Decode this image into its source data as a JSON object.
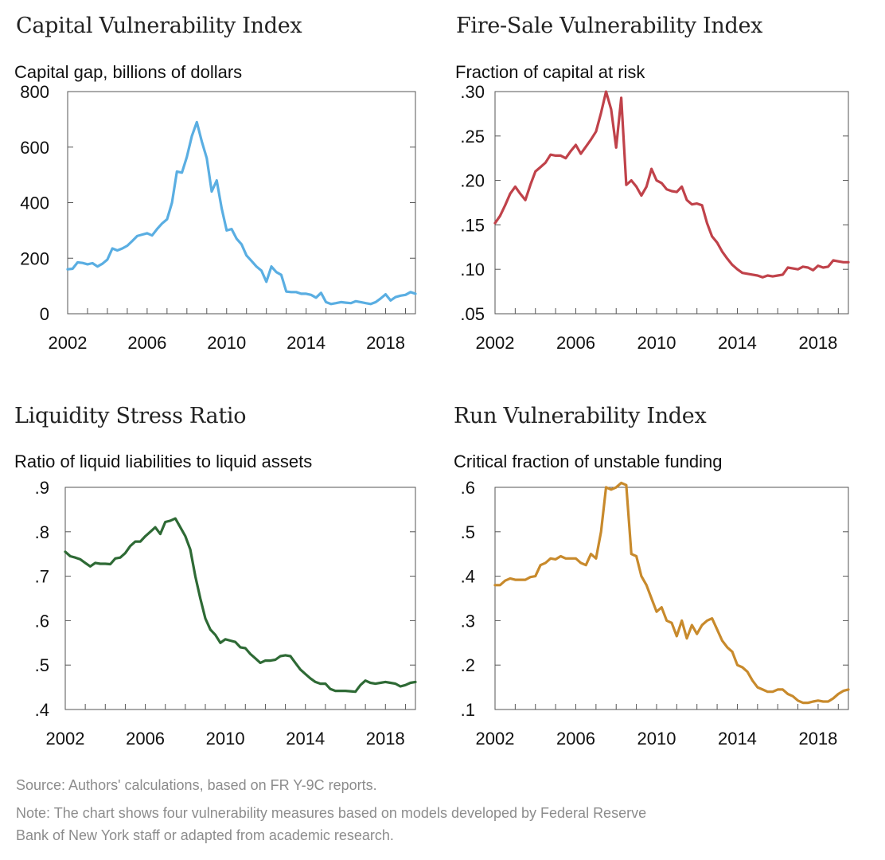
{
  "chart_data": [
    {
      "type": "line",
      "title": "Capital Vulnerability Index",
      "ylabel": "Capital gap, billions of dollars",
      "xlabel": "",
      "ylim": [
        0,
        800
      ],
      "xlim": [
        2002,
        2019.5
      ],
      "y_ticks": [
        "0",
        "200",
        "400",
        "600",
        "800"
      ],
      "y_tick_values": [
        0,
        200,
        400,
        600,
        800
      ],
      "x_ticks": [
        "2002",
        "2006",
        "2010",
        "2014",
        "2018"
      ],
      "color": "#5aaee2",
      "series": [
        {
          "x": [
            2002.0,
            2002.25,
            2002.5,
            2002.75,
            2003.0,
            2003.25,
            2003.5,
            2003.75,
            2004.0,
            2004.25,
            2004.5,
            2004.75,
            2005.0,
            2005.25,
            2005.5,
            2005.75,
            2006.0,
            2006.25,
            2006.5,
            2006.75,
            2007.0,
            2007.25,
            2007.5,
            2007.75,
            2008.0,
            2008.25,
            2008.5,
            2008.75,
            2009.0,
            2009.25,
            2009.5,
            2009.75,
            2010.0,
            2010.25,
            2010.5,
            2010.75,
            2011.0,
            2011.25,
            2011.5,
            2011.75,
            2012.0,
            2012.25,
            2012.5,
            2012.75,
            2013.0,
            2013.25,
            2013.5,
            2013.75,
            2014.0,
            2014.25,
            2014.5,
            2014.75,
            2015.0,
            2015.25,
            2015.5,
            2015.75,
            2016.0,
            2016.25,
            2016.5,
            2016.75,
            2017.0,
            2017.25,
            2017.5,
            2017.75,
            2018.0,
            2018.25,
            2018.5,
            2018.75,
            2019.0,
            2019.25,
            2019.5
          ],
          "y": [
            160,
            162,
            185,
            183,
            178,
            182,
            170,
            180,
            195,
            235,
            228,
            235,
            245,
            262,
            280,
            285,
            290,
            282,
            305,
            325,
            340,
            400,
            512,
            508,
            565,
            640,
            690,
            620,
            560,
            440,
            480,
            380,
            300,
            305,
            270,
            250,
            210,
            190,
            170,
            155,
            115,
            170,
            150,
            140,
            80,
            78,
            78,
            72,
            72,
            68,
            58,
            75,
            42,
            35,
            38,
            42,
            40,
            38,
            45,
            42,
            38,
            35,
            42,
            55,
            70,
            48,
            60,
            65,
            68,
            78,
            72
          ]
        }
      ]
    },
    {
      "type": "line",
      "title": "Fire-Sale Vulnerability Index",
      "ylabel": "Fraction of capital at risk",
      "xlabel": "",
      "ylim": [
        0.05,
        0.3
      ],
      "xlim": [
        2002,
        2019.5
      ],
      "y_ticks": [
        ".05",
        ".10",
        ".15",
        ".20",
        ".25",
        ".30"
      ],
      "y_tick_values": [
        0.05,
        0.1,
        0.15,
        0.2,
        0.25,
        0.3
      ],
      "x_ticks": [
        "2002",
        "2006",
        "2010",
        "2014",
        "2018"
      ],
      "color": "#c0424a",
      "series": [
        {
          "x": [
            2002.0,
            2002.25,
            2002.5,
            2002.75,
            2003.0,
            2003.25,
            2003.5,
            2003.75,
            2004.0,
            2004.25,
            2004.5,
            2004.75,
            2005.0,
            2005.25,
            2005.5,
            2005.75,
            2006.0,
            2006.25,
            2006.5,
            2006.75,
            2007.0,
            2007.25,
            2007.5,
            2007.75,
            2008.0,
            2008.25,
            2008.5,
            2008.75,
            2009.0,
            2009.25,
            2009.5,
            2009.75,
            2010.0,
            2010.25,
            2010.5,
            2010.75,
            2011.0,
            2011.25,
            2011.5,
            2011.75,
            2012.0,
            2012.25,
            2012.5,
            2012.75,
            2013.0,
            2013.25,
            2013.5,
            2013.75,
            2014.0,
            2014.25,
            2014.5,
            2014.75,
            2015.0,
            2015.25,
            2015.5,
            2015.75,
            2016.0,
            2016.25,
            2016.5,
            2016.75,
            2017.0,
            2017.25,
            2017.5,
            2017.75,
            2018.0,
            2018.25,
            2018.5,
            2018.75,
            2019.0,
            2019.25,
            2019.5
          ],
          "y": [
            0.152,
            0.16,
            0.172,
            0.185,
            0.193,
            0.185,
            0.178,
            0.195,
            0.21,
            0.215,
            0.22,
            0.229,
            0.228,
            0.228,
            0.225,
            0.233,
            0.24,
            0.23,
            0.238,
            0.246,
            0.255,
            0.276,
            0.3,
            0.28,
            0.237,
            0.293,
            0.195,
            0.2,
            0.193,
            0.183,
            0.193,
            0.213,
            0.2,
            0.197,
            0.19,
            0.188,
            0.187,
            0.193,
            0.178,
            0.173,
            0.174,
            0.172,
            0.152,
            0.137,
            0.13,
            0.12,
            0.112,
            0.105,
            0.1,
            0.096,
            0.095,
            0.094,
            0.093,
            0.091,
            0.093,
            0.092,
            0.093,
            0.094,
            0.102,
            0.101,
            0.1,
            0.103,
            0.102,
            0.099,
            0.104,
            0.102,
            0.103,
            0.11,
            0.109,
            0.108,
            0.108
          ]
        }
      ]
    },
    {
      "type": "line",
      "title": "Liquidity Stress Ratio",
      "ylabel": "Ratio of liquid liabilities to liquid assets",
      "xlabel": "",
      "ylim": [
        0.4,
        0.9
      ],
      "xlim": [
        2002,
        2019.5
      ],
      "y_ticks": [
        ".4",
        ".5",
        ".6",
        ".7",
        ".8",
        ".9"
      ],
      "y_tick_values": [
        0.4,
        0.5,
        0.6,
        0.7,
        0.8,
        0.9
      ],
      "x_ticks": [
        "2002",
        "2006",
        "2010",
        "2014",
        "2018"
      ],
      "color": "#2e6a35",
      "series": [
        {
          "x": [
            2002.0,
            2002.25,
            2002.5,
            2002.75,
            2003.0,
            2003.25,
            2003.5,
            2003.75,
            2004.0,
            2004.25,
            2004.5,
            2004.75,
            2005.0,
            2005.25,
            2005.5,
            2005.75,
            2006.0,
            2006.25,
            2006.5,
            2006.75,
            2007.0,
            2007.25,
            2007.5,
            2007.75,
            2008.0,
            2008.25,
            2008.5,
            2008.75,
            2009.0,
            2009.25,
            2009.5,
            2009.75,
            2010.0,
            2010.25,
            2010.5,
            2010.75,
            2011.0,
            2011.25,
            2011.5,
            2011.75,
            2012.0,
            2012.25,
            2012.5,
            2012.75,
            2013.0,
            2013.25,
            2013.5,
            2013.75,
            2014.0,
            2014.25,
            2014.5,
            2014.75,
            2015.0,
            2015.25,
            2015.5,
            2015.75,
            2016.0,
            2016.25,
            2016.5,
            2016.75,
            2017.0,
            2017.25,
            2017.5,
            2017.75,
            2018.0,
            2018.25,
            2018.5,
            2018.75,
            2019.0,
            2019.25,
            2019.5
          ],
          "y": [
            0.755,
            0.745,
            0.742,
            0.738,
            0.73,
            0.722,
            0.73,
            0.728,
            0.728,
            0.727,
            0.74,
            0.742,
            0.752,
            0.768,
            0.778,
            0.778,
            0.79,
            0.8,
            0.81,
            0.795,
            0.822,
            0.825,
            0.83,
            0.81,
            0.79,
            0.76,
            0.7,
            0.65,
            0.605,
            0.58,
            0.568,
            0.55,
            0.558,
            0.555,
            0.552,
            0.54,
            0.538,
            0.525,
            0.515,
            0.505,
            0.51,
            0.51,
            0.512,
            0.52,
            0.522,
            0.52,
            0.505,
            0.49,
            0.48,
            0.47,
            0.462,
            0.458,
            0.458,
            0.446,
            0.442,
            0.442,
            0.442,
            0.441,
            0.44,
            0.455,
            0.465,
            0.46,
            0.458,
            0.46,
            0.462,
            0.46,
            0.458,
            0.452,
            0.455,
            0.46,
            0.462
          ]
        }
      ]
    },
    {
      "type": "line",
      "title": "Run Vulnerability Index",
      "ylabel": "Critical fraction of unstable funding",
      "xlabel": "",
      "ylim": [
        0.1,
        0.6
      ],
      "xlim": [
        2002,
        2019.5
      ],
      "y_ticks": [
        ".1",
        ".2",
        ".3",
        ".4",
        ".5",
        ".6"
      ],
      "y_tick_values": [
        0.1,
        0.2,
        0.3,
        0.4,
        0.5,
        0.6
      ],
      "x_ticks": [
        "2002",
        "2006",
        "2010",
        "2014",
        "2018"
      ],
      "color": "#c88a2c",
      "series": [
        {
          "x": [
            2002.0,
            2002.25,
            2002.5,
            2002.75,
            2003.0,
            2003.25,
            2003.5,
            2003.75,
            2004.0,
            2004.25,
            2004.5,
            2004.75,
            2005.0,
            2005.25,
            2005.5,
            2005.75,
            2006.0,
            2006.25,
            2006.5,
            2006.75,
            2007.0,
            2007.25,
            2007.5,
            2007.75,
            2008.0,
            2008.25,
            2008.5,
            2008.75,
            2009.0,
            2009.25,
            2009.5,
            2009.75,
            2010.0,
            2010.25,
            2010.5,
            2010.75,
            2011.0,
            2011.25,
            2011.5,
            2011.75,
            2012.0,
            2012.25,
            2012.5,
            2012.75,
            2013.0,
            2013.25,
            2013.5,
            2013.75,
            2014.0,
            2014.25,
            2014.5,
            2014.75,
            2015.0,
            2015.25,
            2015.5,
            2015.75,
            2016.0,
            2016.25,
            2016.5,
            2016.75,
            2017.0,
            2017.25,
            2017.5,
            2017.75,
            2018.0,
            2018.25,
            2018.5,
            2018.75,
            2019.0,
            2019.25,
            2019.5
          ],
          "y": [
            0.38,
            0.38,
            0.39,
            0.395,
            0.392,
            0.392,
            0.392,
            0.398,
            0.4,
            0.425,
            0.43,
            0.44,
            0.438,
            0.445,
            0.44,
            0.44,
            0.44,
            0.43,
            0.425,
            0.45,
            0.44,
            0.5,
            0.6,
            0.595,
            0.6,
            0.61,
            0.605,
            0.45,
            0.445,
            0.4,
            0.38,
            0.35,
            0.32,
            0.33,
            0.3,
            0.295,
            0.265,
            0.3,
            0.26,
            0.29,
            0.27,
            0.29,
            0.3,
            0.305,
            0.28,
            0.255,
            0.24,
            0.23,
            0.2,
            0.195,
            0.185,
            0.165,
            0.15,
            0.145,
            0.14,
            0.14,
            0.145,
            0.145,
            0.135,
            0.13,
            0.12,
            0.115,
            0.115,
            0.118,
            0.12,
            0.118,
            0.118,
            0.125,
            0.135,
            0.142,
            0.145
          ]
        }
      ]
    }
  ],
  "footer": {
    "source": "Source:  Authors' calculations, based on FR Y-9C reports.",
    "note_line1": "Note: The chart shows four vulnerability measures based on models developed by Federal Reserve",
    "note_line2": "Bank of New York staff or adapted from academic research."
  }
}
